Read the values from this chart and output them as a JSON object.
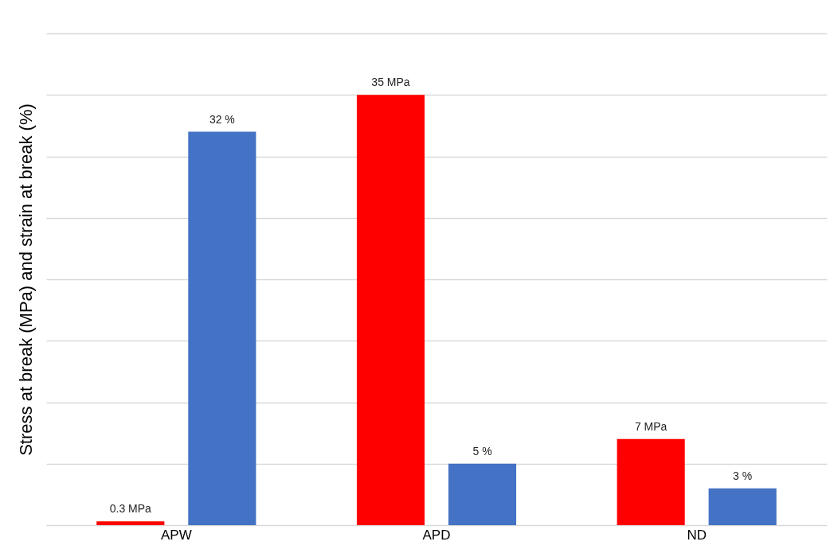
{
  "chart_data": {
    "type": "bar",
    "ylabel": "Stress at break (MPa) and strain at break (%)",
    "categories": [
      "APW",
      "APD",
      "ND"
    ],
    "series": [
      {
        "color": "#ff0000",
        "values": [
          0.3,
          35,
          7
        ],
        "value_labels": [
          "0.3 MPa",
          "35 MPa",
          "7 MPa"
        ]
      },
      {
        "color": "#4472c4",
        "values": [
          32,
          5,
          3
        ],
        "value_labels": [
          "32 %",
          "5 %",
          "3 %"
        ]
      }
    ],
    "ylim": [
      0,
      40
    ],
    "yticks": [
      {
        "value": 0,
        "label": null
      },
      {
        "value": 5,
        "label": null
      },
      {
        "value": 10,
        "label": null
      },
      {
        "value": 15,
        "label": null
      },
      {
        "value": 20,
        "label": null
      },
      {
        "value": 25,
        "label": null
      },
      {
        "value": 30,
        "label": null
      },
      {
        "value": 35,
        "label": null
      },
      {
        "value": 40,
        "label": null
      }
    ],
    "tick_labels": "x",
    "grid": "y",
    "legend": false
  }
}
